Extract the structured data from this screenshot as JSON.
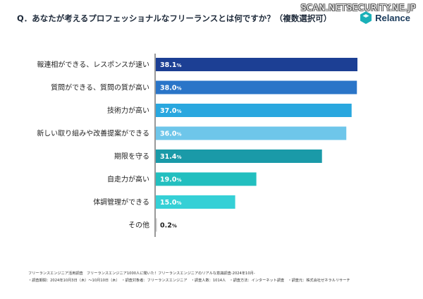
{
  "watermark": "SCAN.NETSECURITY.NE.JP",
  "question": "Q．あなたが考えるプロフェッショナルなフリーランスとは何ですか？（複数選択可）",
  "logo": {
    "name": "Relance",
    "color": "#1ab0b8"
  },
  "chart_data": {
    "type": "bar",
    "orientation": "horizontal",
    "categories": [
      "報連相ができる、レスポンスが速い",
      "質問ができる、質問の質が高い",
      "技術力が高い",
      "新しい取り組みや改善提案ができる",
      "期限を守る",
      "自走力が高い",
      "体調管理ができる",
      "その他"
    ],
    "values": [
      38.1,
      38.0,
      37.0,
      36.0,
      31.4,
      19.0,
      15.0,
      0.2
    ],
    "value_labels": [
      "38.1",
      "38.0",
      "37.0",
      "36.0",
      "31.4",
      "19.0",
      "15.0",
      "0.2"
    ],
    "unit": "%",
    "colors": [
      "#1c3f94",
      "#2a75c8",
      "#29a7df",
      "#6ec6ea",
      "#1a9aa8",
      "#22bfbf",
      "#35d0d6",
      "#cccccc"
    ],
    "xlim": [
      0,
      38.1
    ],
    "grid": false,
    "legend": "none"
  },
  "footer": {
    "line1": "フリーランスエンジニア活用調査　フリーランスエンジニア1000人に聞いた！フリーランスエンジニアのリアルな意識調査-2024年10月-",
    "line2": "・調査期間：2024年10月3日（木）〜10月10日（木）　・調査対象者：フリーランスエンジニア　・調査人数：1014人　・調査方法：インターネット調査　・調査元：株式会社ゼネラルリサーチ"
  }
}
